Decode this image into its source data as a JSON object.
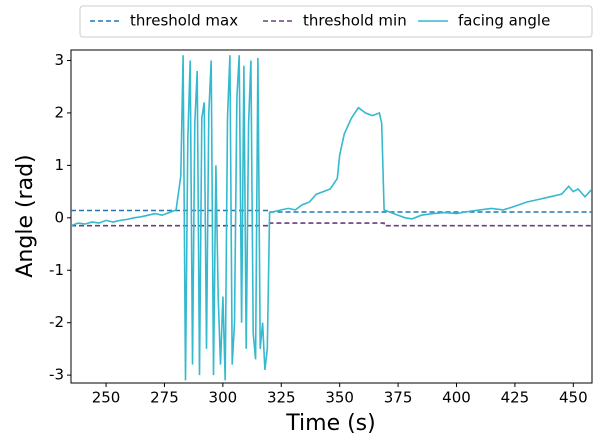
{
  "chart_data": {
    "type": "line",
    "xlabel": "Time (s)",
    "ylabel": "Angle (rad)",
    "xlim": [
      235,
      458
    ],
    "ylim": [
      -3.15,
      3.2
    ],
    "xticks": [
      250,
      275,
      300,
      325,
      350,
      375,
      400,
      425,
      450
    ],
    "yticks": [
      -3,
      -2,
      -1,
      0,
      1,
      2,
      3
    ],
    "legend": "top",
    "series": [
      {
        "name": "threshold max",
        "color": "#1f77b4",
        "dash": true,
        "x": [
          235,
          320,
          320,
          458
        ],
        "values": [
          0.14,
          0.14,
          0.11,
          0.11
        ]
      },
      {
        "name": "threshold min",
        "color": "#6b3d7c",
        "dash": true,
        "x": [
          235,
          320,
          320,
          369,
          369,
          458
        ],
        "values": [
          -0.15,
          -0.15,
          -0.1,
          -0.1,
          -0.15,
          -0.15
        ]
      },
      {
        "name": "facing angle",
        "color": "#35b9cf",
        "dash": false,
        "x": [
          235,
          238,
          241,
          244,
          247,
          250,
          253,
          256,
          259,
          262,
          265,
          268,
          271,
          274,
          277,
          280,
          282,
          283,
          284,
          285,
          286,
          287,
          288,
          289,
          290,
          291,
          292,
          293,
          294,
          295,
          296,
          297,
          298,
          299,
          300,
          301,
          302,
          303,
          304,
          305,
          306,
          307,
          308,
          309,
          310,
          311,
          312,
          313,
          314,
          315,
          316,
          317,
          318,
          319,
          320,
          322,
          325,
          328,
          331,
          334,
          337,
          340,
          343,
          346,
          349,
          350,
          352,
          355,
          358,
          361,
          364,
          367,
          368,
          369,
          372,
          375,
          378,
          381,
          385,
          390,
          395,
          400,
          405,
          410,
          415,
          420,
          425,
          430,
          435,
          440,
          445,
          448,
          450,
          452,
          455,
          458
        ],
        "values": [
          -0.15,
          -0.1,
          -0.12,
          -0.08,
          -0.1,
          -0.05,
          -0.08,
          -0.05,
          -0.03,
          0.0,
          0.02,
          0.05,
          0.08,
          0.05,
          0.1,
          0.15,
          0.8,
          3.1,
          -3.1,
          1.5,
          3.0,
          -2.8,
          1.8,
          2.8,
          -3.0,
          1.9,
          2.2,
          -2.5,
          2.0,
          3.0,
          -3.0,
          1.0,
          -1.5,
          -2.8,
          -1.5,
          -3.1,
          1.9,
          3.1,
          -2.8,
          -2.0,
          2.3,
          3.1,
          -2.0,
          2.9,
          -2.5,
          1.8,
          3.0,
          -2.2,
          -2.7,
          3.05,
          -2.5,
          -2.0,
          -2.9,
          -2.5,
          0.1,
          0.12,
          0.15,
          0.18,
          0.15,
          0.25,
          0.3,
          0.45,
          0.5,
          0.55,
          0.75,
          1.2,
          1.6,
          1.9,
          2.1,
          2.0,
          1.95,
          2.0,
          1.8,
          0.15,
          0.1,
          0.05,
          0.0,
          -0.02,
          0.05,
          0.08,
          0.1,
          0.08,
          0.12,
          0.15,
          0.18,
          0.15,
          0.22,
          0.3,
          0.35,
          0.4,
          0.45,
          0.6,
          0.5,
          0.55,
          0.4,
          0.55
        ]
      }
    ]
  }
}
